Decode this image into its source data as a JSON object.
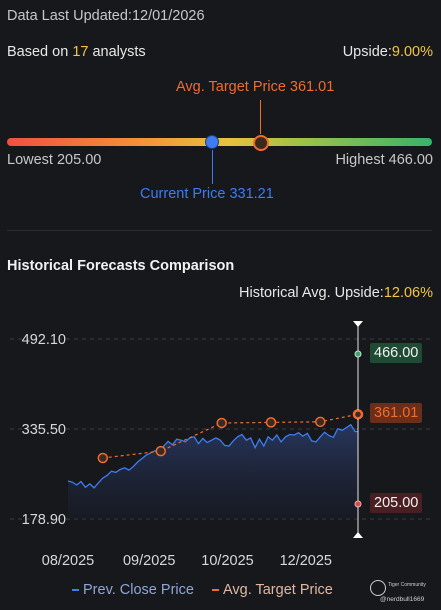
{
  "header": {
    "updated_label": "Data Last Updated:",
    "updated_date": "12/01/2026"
  },
  "analysts": {
    "prefix": "Based on ",
    "count": "17",
    "suffix": " analysts",
    "upside_label": "Upside:",
    "upside_value": "9.00%"
  },
  "gauge": {
    "avg_target_label": "Avg. Target Price 361.01",
    "lowest_label": "Lowest 205.00",
    "highest_label": "Highest 466.00",
    "current_label": "Current Price 331.21",
    "low": 205.0,
    "high": 466.0,
    "current": 331.21,
    "avg_target": 361.01
  },
  "history": {
    "title": "Historical Forecasts Comparison",
    "avg_upside_label": "Historical Avg. Upside:",
    "avg_upside_value": "12.06%",
    "tags": {
      "high": "466.00",
      "avg": "361.01",
      "low": "205.00"
    },
    "legend": {
      "close": "Prev. Close Price",
      "target": "Avg. Target Price"
    }
  },
  "watermark": {
    "brand": "Tiger Community",
    "user": "@nerdbull1669"
  },
  "colors": {
    "close_line": "#3d7cf2",
    "target_line": "#f26b2b",
    "highest": "#3fa36a",
    "lowest": "#d94a4a"
  },
  "chart_data": {
    "type": "line",
    "y_ticks": [
      "492.10",
      "335.50",
      "178.90"
    ],
    "x_ticks": [
      "08/2025",
      "09/2025",
      "10/2025",
      "12/2025"
    ],
    "ylim": [
      178.9,
      492.1
    ],
    "xlim": [
      0,
      100
    ],
    "series": [
      {
        "name": "Prev. Close Price",
        "x": [
          0,
          1.5,
          3,
          4.5,
          6,
          7.5,
          9,
          10.5,
          12,
          13.5,
          15,
          16.5,
          18,
          19.5,
          21,
          22.5,
          24,
          25.5,
          27,
          28.5,
          30,
          31.5,
          33,
          34.5,
          36,
          37.5,
          39,
          40.5,
          42,
          43.5,
          45,
          46.5,
          48,
          49.5,
          51,
          52.5,
          54,
          55.5,
          57,
          58.5,
          60,
          61.5,
          63,
          64.5,
          66,
          67.5,
          69,
          70.5,
          72,
          73.5,
          75,
          76.5,
          78,
          79.5,
          81,
          82.5,
          84,
          85.5,
          87,
          88.5,
          90,
          91.5,
          93,
          94.5,
          96,
          97.5,
          99,
          100
        ],
        "values": [
          245,
          243,
          238,
          244,
          234,
          240,
          233,
          242,
          250,
          255,
          262,
          260,
          265,
          268,
          264,
          270,
          278,
          284,
          290,
          294,
          298,
          292,
          306,
          314,
          308,
          318,
          316,
          313,
          320,
          322,
          310,
          319,
          312,
          316,
          320,
          316,
          307,
          306,
          315,
          322,
          326,
          316,
          320,
          303,
          318,
          306,
          322,
          316,
          325,
          313,
          322,
          326,
          325,
          329,
          323,
          328,
          315,
          313,
          322,
          330,
          324,
          321,
          336,
          333,
          338,
          343,
          331,
          331.21
        ],
        "color": "#3d7cf2"
      },
      {
        "name": "Avg. Target Price",
        "x": [
          12,
          32,
          53,
          70,
          87,
          100
        ],
        "values": [
          285,
          297,
          346,
          347,
          348,
          361.01
        ],
        "color": "#f26b2b"
      }
    ],
    "markers": {
      "high": 466.0,
      "avg": 361.01,
      "low": 205.0
    }
  }
}
